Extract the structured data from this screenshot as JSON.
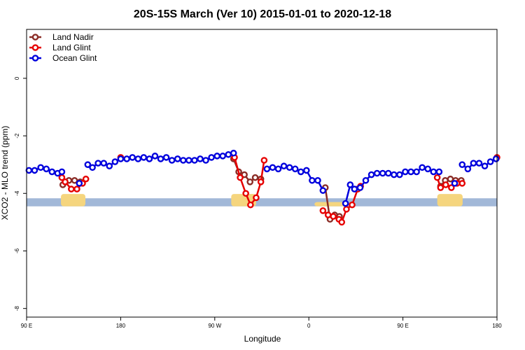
{
  "chart_data": {
    "type": "line",
    "title": "20S-15S March (Ver 10)   2015-01-01 to 2020-12-18",
    "xlabel": "Longitude",
    "ylabel": "XCO2 - MLO trend (ppm)",
    "xlim": [
      0,
      100
    ],
    "ylim": [
      -8.3,
      1.7
    ],
    "x_ticks": [
      {
        "value": 0,
        "label": "90 E"
      },
      {
        "value": 20,
        "label": "180"
      },
      {
        "value": 40,
        "label": "90 W"
      },
      {
        "value": 60,
        "label": "0"
      },
      {
        "value": 80,
        "label": "90 E"
      },
      {
        "value": 100,
        "label": "180"
      }
    ],
    "y_ticks": [
      {
        "value": 0,
        "label": "0"
      },
      {
        "value": -2,
        "label": "-2"
      },
      {
        "value": -4,
        "label": "-4"
      },
      {
        "value": -6,
        "label": "-6"
      },
      {
        "value": -8,
        "label": "-8"
      }
    ],
    "legend_position": "top-left",
    "land_band": {
      "y_top": -4.17,
      "y_bottom": -4.45,
      "ocean_color": "#a2b8d8",
      "land_color": "#f5d57e",
      "land_segments": [
        {
          "x0": 7.3,
          "x1": 12.5,
          "y_top": -4.02
        },
        {
          "x0": 43.5,
          "x1": 48.8,
          "y_top": -4.02
        },
        {
          "x0": 61.2,
          "x1": 68.0,
          "y_top": -4.3
        },
        {
          "x0": 87.3,
          "x1": 92.7,
          "y_top": -4.02
        }
      ]
    },
    "series": [
      {
        "name": "Land Nadir",
        "color": "#8b2c26",
        "segments": [
          [
            [
              7.7,
              -3.7
            ],
            [
              9.0,
              -3.55
            ],
            [
              10.2,
              -3.55
            ],
            [
              11.4,
              -3.6
            ]
          ],
          [
            [
              44.0,
              -2.8
            ],
            [
              45.1,
              -3.25
            ],
            [
              46.3,
              -3.35
            ],
            [
              47.5,
              -3.6
            ],
            [
              48.6,
              -3.45
            ],
            [
              49.8,
              -3.5
            ]
          ],
          [
            [
              63.5,
              -3.8
            ],
            [
              64.5,
              -4.9
            ],
            [
              65.5,
              -4.75
            ],
            [
              66.5,
              -4.8
            ]
          ],
          [
            [
              88.0,
              -3.75
            ],
            [
              89.0,
              -3.55
            ],
            [
              90.1,
              -3.5
            ],
            [
              91.2,
              -3.55
            ],
            [
              92.4,
              -3.55
            ]
          ]
        ]
      },
      {
        "name": "Land Glint",
        "color": "#e60000",
        "segments": [
          [
            [
              7.5,
              -3.45
            ],
            [
              8.2,
              -3.6
            ],
            [
              9.5,
              -3.85
            ],
            [
              10.7,
              -3.85
            ],
            [
              11.9,
              -3.65
            ],
            [
              12.6,
              -3.5
            ]
          ],
          [
            [
              20.0,
              -2.75
            ]
          ],
          [
            [
              44.2,
              -2.75
            ],
            [
              45.4,
              -3.45
            ],
            [
              46.6,
              -4.0
            ],
            [
              47.6,
              -4.4
            ],
            [
              48.8,
              -4.15
            ],
            [
              49.8,
              -3.6
            ],
            [
              50.5,
              -2.85
            ]
          ],
          [
            [
              63.0,
              -4.6
            ],
            [
              64.1,
              -4.75
            ],
            [
              65.2,
              -4.8
            ],
            [
              66.4,
              -4.9
            ],
            [
              67.0,
              -5.0
            ],
            [
              68.0,
              -4.55
            ],
            [
              69.2,
              -4.4
            ],
            [
              70.4,
              -3.85
            ],
            [
              71.0,
              -3.75
            ]
          ],
          [
            [
              87.3,
              -3.45
            ],
            [
              88.0,
              -3.8
            ],
            [
              89.1,
              -3.7
            ],
            [
              90.3,
              -3.8
            ],
            [
              91.5,
              -3.65
            ],
            [
              92.6,
              -3.65
            ]
          ],
          [
            [
              100.0,
              -2.75
            ]
          ]
        ]
      },
      {
        "name": "Ocean Glint",
        "color": "#0000dd",
        "segments": [
          [
            [
              0.5,
              -3.2
            ],
            [
              1.7,
              -3.2
            ],
            [
              3.0,
              -3.1
            ],
            [
              4.2,
              -3.15
            ],
            [
              5.4,
              -3.25
            ],
            [
              6.6,
              -3.3
            ],
            [
              7.5,
              -3.25
            ]
          ],
          [
            [
              11.2,
              -3.65
            ]
          ],
          [
            [
              13.0,
              -3.0
            ],
            [
              14.0,
              -3.1
            ],
            [
              15.2,
              -2.95
            ],
            [
              16.4,
              -2.95
            ],
            [
              17.6,
              -3.05
            ],
            [
              18.8,
              -2.9
            ],
            [
              20.0,
              -2.8
            ],
            [
              21.3,
              -2.8
            ],
            [
              22.5,
              -2.75
            ],
            [
              23.7,
              -2.8
            ],
            [
              24.9,
              -2.75
            ],
            [
              26.1,
              -2.8
            ],
            [
              27.3,
              -2.7
            ],
            [
              28.5,
              -2.8
            ],
            [
              29.7,
              -2.75
            ],
            [
              30.9,
              -2.85
            ],
            [
              32.1,
              -2.8
            ],
            [
              33.3,
              -2.85
            ],
            [
              34.5,
              -2.85
            ],
            [
              35.7,
              -2.85
            ],
            [
              36.9,
              -2.8
            ],
            [
              38.1,
              -2.85
            ],
            [
              39.3,
              -2.75
            ],
            [
              40.5,
              -2.7
            ],
            [
              41.7,
              -2.7
            ],
            [
              42.9,
              -2.65
            ],
            [
              44.0,
              -2.6
            ]
          ],
          [
            [
              51.1,
              -3.15
            ],
            [
              52.3,
              -3.1
            ],
            [
              53.5,
              -3.15
            ],
            [
              54.7,
              -3.05
            ],
            [
              55.9,
              -3.1
            ],
            [
              57.1,
              -3.15
            ],
            [
              58.3,
              -3.25
            ],
            [
              59.5,
              -3.2
            ],
            [
              60.7,
              -3.55
            ],
            [
              61.9,
              -3.55
            ],
            [
              63.0,
              -3.9
            ]
          ],
          [
            [
              67.8,
              -4.35
            ],
            [
              68.8,
              -3.7
            ],
            [
              69.7,
              -3.85
            ],
            [
              70.9,
              -3.8
            ],
            [
              72.1,
              -3.55
            ],
            [
              73.3,
              -3.35
            ],
            [
              74.5,
              -3.3
            ],
            [
              75.7,
              -3.3
            ],
            [
              76.9,
              -3.3
            ],
            [
              78.1,
              -3.35
            ],
            [
              79.3,
              -3.35
            ],
            [
              80.5,
              -3.25
            ],
            [
              81.7,
              -3.25
            ],
            [
              82.9,
              -3.25
            ],
            [
              84.1,
              -3.1
            ],
            [
              85.3,
              -3.15
            ],
            [
              86.5,
              -3.25
            ],
            [
              87.7,
              -3.25
            ]
          ],
          [
            [
              91.0,
              -3.65
            ]
          ],
          [
            [
              92.6,
              -3.0
            ],
            [
              93.8,
              -3.15
            ],
            [
              95.0,
              -2.95
            ],
            [
              96.2,
              -2.95
            ],
            [
              97.4,
              -3.05
            ],
            [
              98.6,
              -2.9
            ],
            [
              99.8,
              -2.8
            ]
          ]
        ]
      }
    ]
  }
}
